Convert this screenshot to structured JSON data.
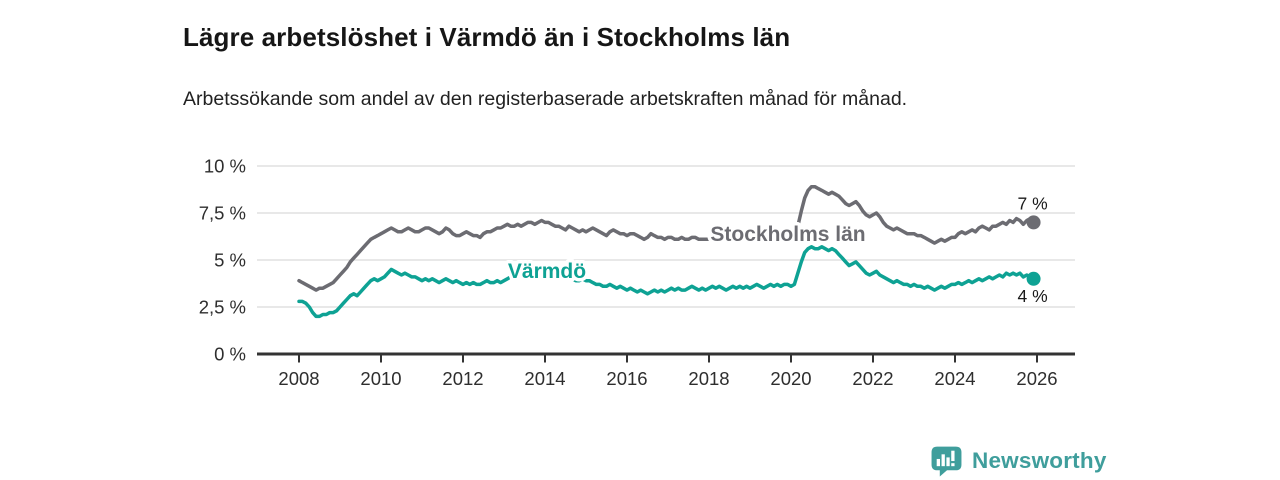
{
  "header": {
    "title": "Lägre arbetslöshet i Värmdö än i Stockholms län",
    "subtitle": "Arbetssökande som andel av den registerbaserade arbetskraften månad för månad."
  },
  "chart_data": {
    "type": "line",
    "title": "Lägre arbetslöshet i Värmdö än i Stockholms län",
    "subtitle": "Arbetssökande som andel av den registerbaserade arbetskraften månad för månad.",
    "x_unit": "monthly",
    "x_start": "2008-01",
    "x_end": "2025-12",
    "x_tick_labels": [
      "2008",
      "2010",
      "2012",
      "2014",
      "2016",
      "2018",
      "2020",
      "2022",
      "2024",
      "2026"
    ],
    "y_tick_labels": [
      "0 %",
      "2,5 %",
      "5 %",
      "7,5 %",
      "10 %"
    ],
    "y_tick_values": [
      0,
      2.5,
      5,
      7.5,
      10
    ],
    "ylim": [
      0,
      10
    ],
    "grid": "horizontal",
    "legend_position": "inline-labels",
    "axis_color": "#333333",
    "gridline_color": "#d9d9d9",
    "tick_label_color": "#2e2e2e",
    "end_label_color": "#1a1a1a",
    "series": [
      {
        "name": "Stockholms län",
        "color": "#6c6c72",
        "end_label": "7 %",
        "end_value": 7.0,
        "values": [
          3.9,
          3.8,
          3.7,
          3.6,
          3.5,
          3.4,
          3.5,
          3.5,
          3.6,
          3.7,
          3.8,
          4.0,
          4.2,
          4.4,
          4.6,
          4.9,
          5.1,
          5.3,
          5.5,
          5.7,
          5.9,
          6.1,
          6.2,
          6.3,
          6.4,
          6.5,
          6.6,
          6.7,
          6.6,
          6.5,
          6.5,
          6.6,
          6.7,
          6.6,
          6.5,
          6.5,
          6.6,
          6.7,
          6.7,
          6.6,
          6.5,
          6.4,
          6.5,
          6.7,
          6.6,
          6.4,
          6.3,
          6.3,
          6.4,
          6.5,
          6.4,
          6.3,
          6.3,
          6.2,
          6.4,
          6.5,
          6.5,
          6.6,
          6.7,
          6.7,
          6.8,
          6.9,
          6.8,
          6.8,
          6.9,
          6.8,
          6.9,
          7.0,
          7.0,
          6.9,
          7.0,
          7.1,
          7.0,
          7.0,
          6.9,
          6.8,
          6.8,
          6.7,
          6.6,
          6.8,
          6.7,
          6.6,
          6.5,
          6.6,
          6.5,
          6.6,
          6.7,
          6.6,
          6.5,
          6.4,
          6.3,
          6.5,
          6.6,
          6.5,
          6.4,
          6.4,
          6.3,
          6.4,
          6.4,
          6.3,
          6.2,
          6.1,
          6.2,
          6.4,
          6.3,
          6.2,
          6.2,
          6.1,
          6.2,
          6.2,
          6.1,
          6.1,
          6.2,
          6.1,
          6.1,
          6.2,
          6.2,
          6.1,
          6.1,
          6.1,
          6.1,
          6.2,
          6.1,
          6.0,
          6.1,
          6.0,
          6.1,
          6.1,
          6.1,
          6.0,
          6.1,
          6.1,
          6.1,
          6.1,
          6.0,
          6.1,
          6.1,
          6.0,
          6.1,
          6.2,
          6.2,
          6.1,
          6.2,
          6.2,
          6.2,
          6.3,
          6.8,
          7.6,
          8.3,
          8.7,
          8.9,
          8.9,
          8.8,
          8.7,
          8.6,
          8.5,
          8.6,
          8.5,
          8.4,
          8.2,
          8.0,
          7.9,
          8.0,
          8.1,
          7.9,
          7.6,
          7.4,
          7.3,
          7.4,
          7.5,
          7.3,
          7.0,
          6.8,
          6.7,
          6.6,
          6.7,
          6.6,
          6.5,
          6.4,
          6.4,
          6.4,
          6.3,
          6.3,
          6.2,
          6.1,
          6.0,
          5.9,
          6.0,
          6.1,
          6.0,
          6.1,
          6.2,
          6.2,
          6.4,
          6.5,
          6.4,
          6.5,
          6.6,
          6.5,
          6.7,
          6.8,
          6.7,
          6.6,
          6.8,
          6.8,
          6.9,
          7.0,
          6.9,
          7.1,
          7.0,
          7.2,
          7.1,
          6.9,
          7.1,
          7.2,
          7.0
        ]
      },
      {
        "name": "Värmdö",
        "color": "#0ea294",
        "end_label": "4 %",
        "end_value": 4.0,
        "values": [
          2.8,
          2.8,
          2.7,
          2.5,
          2.2,
          2.0,
          2.0,
          2.1,
          2.1,
          2.2,
          2.2,
          2.3,
          2.5,
          2.7,
          2.9,
          3.1,
          3.2,
          3.1,
          3.3,
          3.5,
          3.7,
          3.9,
          4.0,
          3.9,
          4.0,
          4.1,
          4.3,
          4.5,
          4.4,
          4.3,
          4.2,
          4.3,
          4.2,
          4.1,
          4.1,
          4.0,
          3.9,
          4.0,
          3.9,
          4.0,
          3.9,
          3.8,
          3.9,
          4.0,
          3.9,
          3.8,
          3.9,
          3.8,
          3.7,
          3.8,
          3.7,
          3.8,
          3.7,
          3.7,
          3.8,
          3.9,
          3.8,
          3.8,
          3.9,
          3.8,
          3.9,
          4.0,
          4.1,
          4.2,
          4.2,
          4.1,
          4.2,
          4.3,
          4.2,
          4.2,
          4.2,
          4.1,
          4.2,
          4.2,
          4.1,
          4.2,
          4.1,
          4.0,
          4.0,
          4.1,
          4.0,
          3.9,
          3.9,
          4.0,
          3.9,
          3.9,
          3.8,
          3.7,
          3.7,
          3.6,
          3.6,
          3.7,
          3.6,
          3.5,
          3.6,
          3.5,
          3.4,
          3.5,
          3.4,
          3.3,
          3.4,
          3.3,
          3.2,
          3.3,
          3.4,
          3.3,
          3.4,
          3.3,
          3.4,
          3.5,
          3.4,
          3.5,
          3.4,
          3.4,
          3.5,
          3.6,
          3.5,
          3.4,
          3.5,
          3.4,
          3.5,
          3.6,
          3.5,
          3.6,
          3.5,
          3.4,
          3.5,
          3.6,
          3.5,
          3.6,
          3.5,
          3.6,
          3.5,
          3.6,
          3.7,
          3.6,
          3.5,
          3.6,
          3.7,
          3.6,
          3.7,
          3.6,
          3.7,
          3.7,
          3.6,
          3.7,
          4.3,
          4.9,
          5.4,
          5.6,
          5.7,
          5.6,
          5.6,
          5.7,
          5.6,
          5.5,
          5.6,
          5.5,
          5.3,
          5.1,
          4.9,
          4.7,
          4.8,
          4.9,
          4.7,
          4.5,
          4.3,
          4.2,
          4.3,
          4.4,
          4.2,
          4.1,
          4.0,
          3.9,
          3.8,
          3.9,
          3.8,
          3.7,
          3.7,
          3.6,
          3.7,
          3.6,
          3.6,
          3.5,
          3.6,
          3.5,
          3.4,
          3.5,
          3.6,
          3.5,
          3.6,
          3.7,
          3.7,
          3.8,
          3.7,
          3.8,
          3.9,
          3.8,
          3.9,
          4.0,
          3.9,
          4.0,
          4.1,
          4.0,
          4.1,
          4.2,
          4.1,
          4.3,
          4.2,
          4.3,
          4.2,
          4.3,
          4.1,
          4.2,
          4.1,
          4.0
        ]
      }
    ]
  },
  "footer": {
    "brand": "Newsworthy",
    "brand_color": "#3f9e9c",
    "logo_icon": "newsworthy-bubble-bar-chart-icon"
  }
}
